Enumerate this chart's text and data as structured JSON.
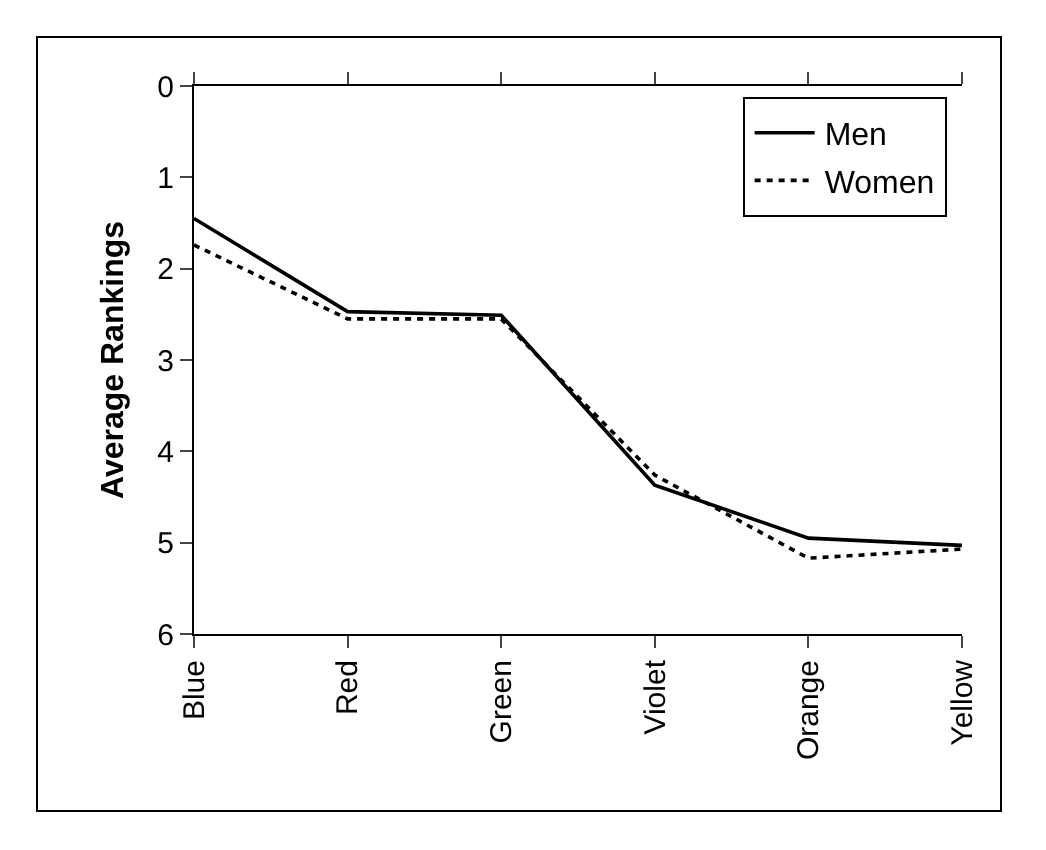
{
  "chart_data": {
    "type": "line",
    "ylabel": "Average Rankings",
    "categories": [
      "Blue",
      "Red",
      "Green",
      "Violet",
      "Orange",
      "Yellow"
    ],
    "series": [
      {
        "name": "Men",
        "color": "#000000",
        "line_style": "solid",
        "values": [
          1.45,
          2.47,
          2.51,
          4.37,
          4.95,
          5.03
        ]
      },
      {
        "name": "Women",
        "color": "#000000",
        "line_style": "dotted",
        "values": [
          1.74,
          2.55,
          2.55,
          4.26,
          5.17,
          5.07
        ]
      }
    ],
    "ylim": [
      6,
      0
    ],
    "yticks": [
      0,
      1,
      2,
      3,
      4,
      5,
      6
    ],
    "grid": false,
    "legend": "top right",
    "marker": "none"
  }
}
